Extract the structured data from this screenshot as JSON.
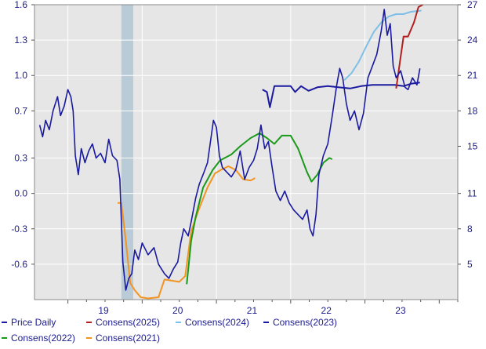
{
  "chart_data": {
    "type": "line",
    "title": "",
    "xlabel": "",
    "ylabel_left": "",
    "ylabel_right": "",
    "x_ticks": [
      "19",
      "20",
      "21",
      "22",
      "23"
    ],
    "y_left_ticks": [
      "1.6",
      "1.3",
      "1.0",
      "0.7",
      "0.3",
      "0.0",
      "-0.3",
      "-0.6"
    ],
    "y_right_ticks": [
      "27",
      "24",
      "21",
      "18",
      "15",
      "11",
      "8",
      "5"
    ],
    "y_left_range": [
      -0.9,
      1.6
    ],
    "y_right_range": [
      2,
      27
    ],
    "x_range": [
      2018.55,
      2024.25
    ],
    "grid": true,
    "shaded_period": [
      2019.72,
      2019.88
    ],
    "series": [
      {
        "name": "Price Daily",
        "axis": "right",
        "color": "#1a1aa0",
        "points": [
          [
            2018.62,
            16.8
          ],
          [
            2018.66,
            15.8
          ],
          [
            2018.7,
            17.2
          ],
          [
            2018.75,
            16.4
          ],
          [
            2018.8,
            18.0
          ],
          [
            2018.86,
            19.2
          ],
          [
            2018.9,
            17.6
          ],
          [
            2018.95,
            18.4
          ],
          [
            2019.0,
            19.8
          ],
          [
            2019.04,
            19.2
          ],
          [
            2019.07,
            18.0
          ],
          [
            2019.1,
            14.2
          ],
          [
            2019.14,
            12.6
          ],
          [
            2019.18,
            14.8
          ],
          [
            2019.23,
            13.6
          ],
          [
            2019.28,
            14.6
          ],
          [
            2019.33,
            15.2
          ],
          [
            2019.38,
            14.0
          ],
          [
            2019.44,
            14.4
          ],
          [
            2019.5,
            13.6
          ],
          [
            2019.55,
            15.6
          ],
          [
            2019.6,
            14.2
          ],
          [
            2019.66,
            13.8
          ],
          [
            2019.7,
            12.2
          ],
          [
            2019.74,
            5.2
          ],
          [
            2019.78,
            2.8
          ],
          [
            2019.82,
            3.8
          ],
          [
            2019.86,
            4.2
          ],
          [
            2019.9,
            6.2
          ],
          [
            2019.95,
            5.4
          ],
          [
            2020.0,
            6.8
          ],
          [
            2020.08,
            5.8
          ],
          [
            2020.16,
            6.4
          ],
          [
            2020.22,
            5.0
          ],
          [
            2020.3,
            4.2
          ],
          [
            2020.36,
            3.8
          ],
          [
            2020.42,
            4.6
          ],
          [
            2020.48,
            5.2
          ],
          [
            2020.52,
            6.8
          ],
          [
            2020.56,
            8.0
          ],
          [
            2020.62,
            7.4
          ],
          [
            2020.66,
            8.6
          ],
          [
            2020.72,
            10.6
          ],
          [
            2020.77,
            11.8
          ],
          [
            2020.82,
            12.6
          ],
          [
            2020.88,
            13.6
          ],
          [
            2020.92,
            15.4
          ],
          [
            2020.96,
            17.2
          ],
          [
            2021.0,
            16.6
          ],
          [
            2021.04,
            14.2
          ],
          [
            2021.08,
            13.2
          ],
          [
            2021.14,
            12.8
          ],
          [
            2021.2,
            12.4
          ],
          [
            2021.26,
            13.0
          ],
          [
            2021.32,
            14.6
          ],
          [
            2021.38,
            12.2
          ],
          [
            2021.44,
            13.2
          ],
          [
            2021.5,
            13.8
          ],
          [
            2021.55,
            14.8
          ],
          [
            2021.6,
            16.8
          ],
          [
            2021.65,
            14.8
          ],
          [
            2021.7,
            15.4
          ],
          [
            2021.75,
            13.2
          ],
          [
            2021.8,
            11.2
          ],
          [
            2021.86,
            10.4
          ],
          [
            2021.92,
            11.2
          ],
          [
            2021.98,
            10.2
          ],
          [
            2022.04,
            9.6
          ],
          [
            2022.1,
            9.2
          ],
          [
            2022.16,
            8.8
          ],
          [
            2022.22,
            9.6
          ],
          [
            2022.26,
            8.0
          ],
          [
            2022.3,
            7.4
          ],
          [
            2022.34,
            9.2
          ],
          [
            2022.38,
            12.6
          ],
          [
            2022.44,
            14.2
          ],
          [
            2022.5,
            15.2
          ],
          [
            2022.56,
            17.6
          ],
          [
            2022.62,
            20.2
          ],
          [
            2022.66,
            21.6
          ],
          [
            2022.7,
            20.8
          ],
          [
            2022.75,
            18.6
          ],
          [
            2022.8,
            17.2
          ],
          [
            2022.86,
            18.0
          ],
          [
            2022.92,
            16.4
          ],
          [
            2022.98,
            17.8
          ],
          [
            2023.04,
            20.8
          ],
          [
            2023.1,
            21.8
          ],
          [
            2023.16,
            22.8
          ],
          [
            2023.22,
            24.8
          ],
          [
            2023.26,
            26.6
          ],
          [
            2023.3,
            24.4
          ],
          [
            2023.34,
            25.4
          ],
          [
            2023.38,
            21.8
          ],
          [
            2023.42,
            20.8
          ],
          [
            2023.48,
            21.4
          ],
          [
            2023.54,
            20.0
          ],
          [
            2023.58,
            19.8
          ],
          [
            2023.64,
            20.8
          ],
          [
            2023.7,
            20.2
          ],
          [
            2023.74,
            21.6
          ]
        ]
      },
      {
        "name": "Consens(2025)",
        "axis": "left",
        "color": "#b21f1f",
        "points": [
          [
            2023.42,
            0.89
          ],
          [
            2023.52,
            1.33
          ],
          [
            2023.58,
            1.33
          ],
          [
            2023.66,
            1.45
          ],
          [
            2023.72,
            1.58
          ],
          [
            2023.78,
            1.6
          ]
        ]
      },
      {
        "name": "Consens(2024)",
        "axis": "left",
        "color": "#7ec0e8",
        "points": [
          [
            2022.72,
            0.96
          ],
          [
            2022.82,
            1.02
          ],
          [
            2022.92,
            1.12
          ],
          [
            2023.02,
            1.25
          ],
          [
            2023.12,
            1.37
          ],
          [
            2023.22,
            1.45
          ],
          [
            2023.32,
            1.5
          ],
          [
            2023.42,
            1.52
          ],
          [
            2023.52,
            1.52
          ],
          [
            2023.62,
            1.54
          ],
          [
            2023.76,
            1.55
          ]
        ]
      },
      {
        "name": "Consens(2023)",
        "axis": "left",
        "color": "#1a1aa0",
        "points": [
          [
            2021.62,
            0.88
          ],
          [
            2021.68,
            0.86
          ],
          [
            2021.72,
            0.73
          ],
          [
            2021.78,
            0.91
          ],
          [
            2021.9,
            0.91
          ],
          [
            2022.0,
            0.91
          ],
          [
            2022.06,
            0.86
          ],
          [
            2022.14,
            0.91
          ],
          [
            2022.24,
            0.87
          ],
          [
            2022.36,
            0.9
          ],
          [
            2022.5,
            0.91
          ],
          [
            2022.64,
            0.9
          ],
          [
            2022.8,
            0.89
          ],
          [
            2022.95,
            0.91
          ],
          [
            2023.1,
            0.92
          ],
          [
            2023.24,
            0.92
          ],
          [
            2023.4,
            0.92
          ],
          [
            2023.52,
            0.91
          ],
          [
            2023.62,
            0.93
          ],
          [
            2023.74,
            0.94
          ]
        ]
      },
      {
        "name": "Consens(2022)",
        "axis": "left",
        "color": "#1a9a1a",
        "points": [
          [
            2020.6,
            -0.77
          ],
          [
            2020.66,
            -0.4
          ],
          [
            2020.72,
            -0.2
          ],
          [
            2020.82,
            0.05
          ],
          [
            2020.95,
            0.2
          ],
          [
            2021.05,
            0.28
          ],
          [
            2021.2,
            0.33
          ],
          [
            2021.32,
            0.4
          ],
          [
            2021.46,
            0.47
          ],
          [
            2021.58,
            0.51
          ],
          [
            2021.68,
            0.47
          ],
          [
            2021.78,
            0.42
          ],
          [
            2021.88,
            0.49
          ],
          [
            2022.0,
            0.49
          ],
          [
            2022.1,
            0.38
          ],
          [
            2022.22,
            0.18
          ],
          [
            2022.28,
            0.1
          ],
          [
            2022.36,
            0.16
          ],
          [
            2022.44,
            0.26
          ],
          [
            2022.52,
            0.3
          ],
          [
            2022.56,
            0.29
          ]
        ]
      },
      {
        "name": "Consens(2021)",
        "axis": "left",
        "color": "#f29422",
        "points": [
          [
            2019.67,
            -0.08
          ],
          [
            2019.72,
            -0.08
          ],
          [
            2019.78,
            -0.4
          ],
          [
            2019.84,
            -0.76
          ],
          [
            2019.9,
            -0.82
          ],
          [
            2019.98,
            -0.88
          ],
          [
            2020.08,
            -0.89
          ],
          [
            2020.22,
            -0.88
          ],
          [
            2020.3,
            -0.73
          ],
          [
            2020.4,
            -0.74
          ],
          [
            2020.5,
            -0.75
          ],
          [
            2020.58,
            -0.7
          ],
          [
            2020.66,
            -0.32
          ],
          [
            2020.76,
            -0.14
          ],
          [
            2020.88,
            0.05
          ],
          [
            2020.98,
            0.17
          ],
          [
            2021.06,
            0.2
          ],
          [
            2021.16,
            0.23
          ],
          [
            2021.26,
            0.2
          ],
          [
            2021.36,
            0.12
          ],
          [
            2021.46,
            0.11
          ],
          [
            2021.52,
            0.13
          ]
        ]
      }
    ]
  },
  "legend": [
    {
      "label": "Price Daily",
      "color": "#1a1aa0"
    },
    {
      "label": "Consens(2025)",
      "color": "#b21f1f"
    },
    {
      "label": "Consens(2024)",
      "color": "#7ec0e8"
    },
    {
      "label": "Consens(2023)",
      "color": "#1a1aa0"
    },
    {
      "label": "Consens(2022)",
      "color": "#1a9a1a"
    },
    {
      "label": "Consens(2021)",
      "color": "#f29422"
    }
  ]
}
